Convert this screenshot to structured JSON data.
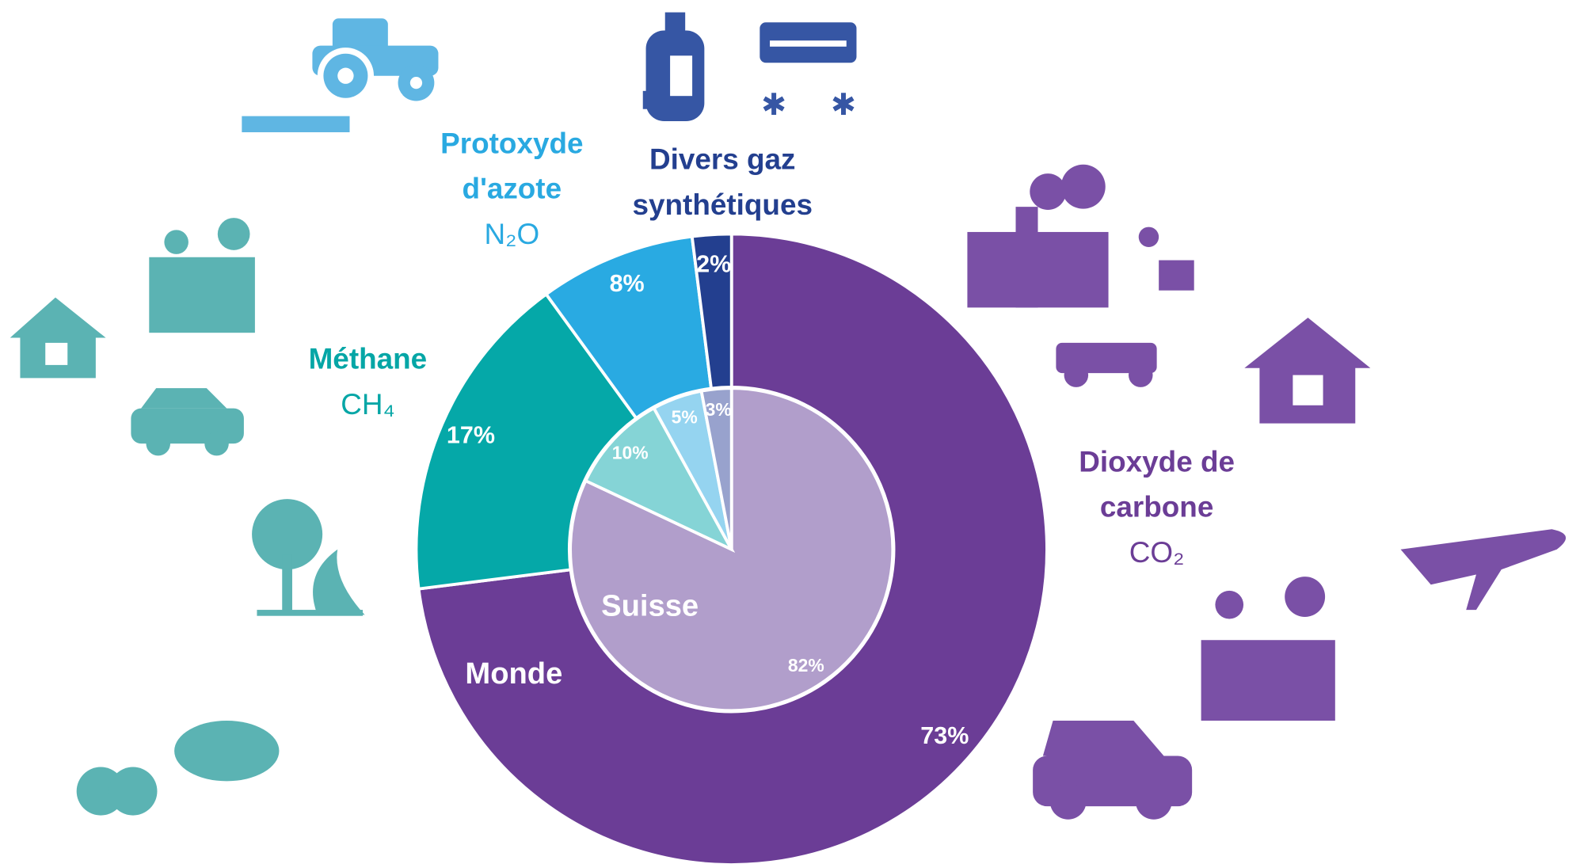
{
  "chart_data": {
    "type": "donut",
    "categories": [
      {
        "lines": [
          "Dioxyde de",
          "carbone"
        ],
        "formula": "CO₂",
        "color": "#6b3d96"
      },
      {
        "lines": [
          "Méthane"
        ],
        "formula": "CH₄",
        "color": "#05a6a6"
      },
      {
        "lines": [
          "Protoxyde",
          "d'azote"
        ],
        "formula": "N₂O",
        "color": "#29a9e1"
      },
      {
        "lines": [
          "Divers gaz",
          "synthétiques"
        ],
        "color": "#233f8f"
      }
    ],
    "series": [
      {
        "name": "Monde",
        "colors": [
          "#6b3d96",
          "#05a8a8",
          "#29aae2",
          "#233f8f"
        ],
        "values": [
          73,
          17,
          8,
          2
        ],
        "value_labels": [
          "73%",
          "17%",
          "8%",
          "2%"
        ]
      },
      {
        "name": "Suisse",
        "colors": [
          "#b19ecb",
          "#85d4d6",
          "#95d4f0",
          "#98a2cd"
        ],
        "values": [
          82,
          10,
          5,
          3
        ],
        "value_labels": [
          "82%",
          "10%",
          "5%",
          "3%"
        ]
      }
    ]
  }
}
